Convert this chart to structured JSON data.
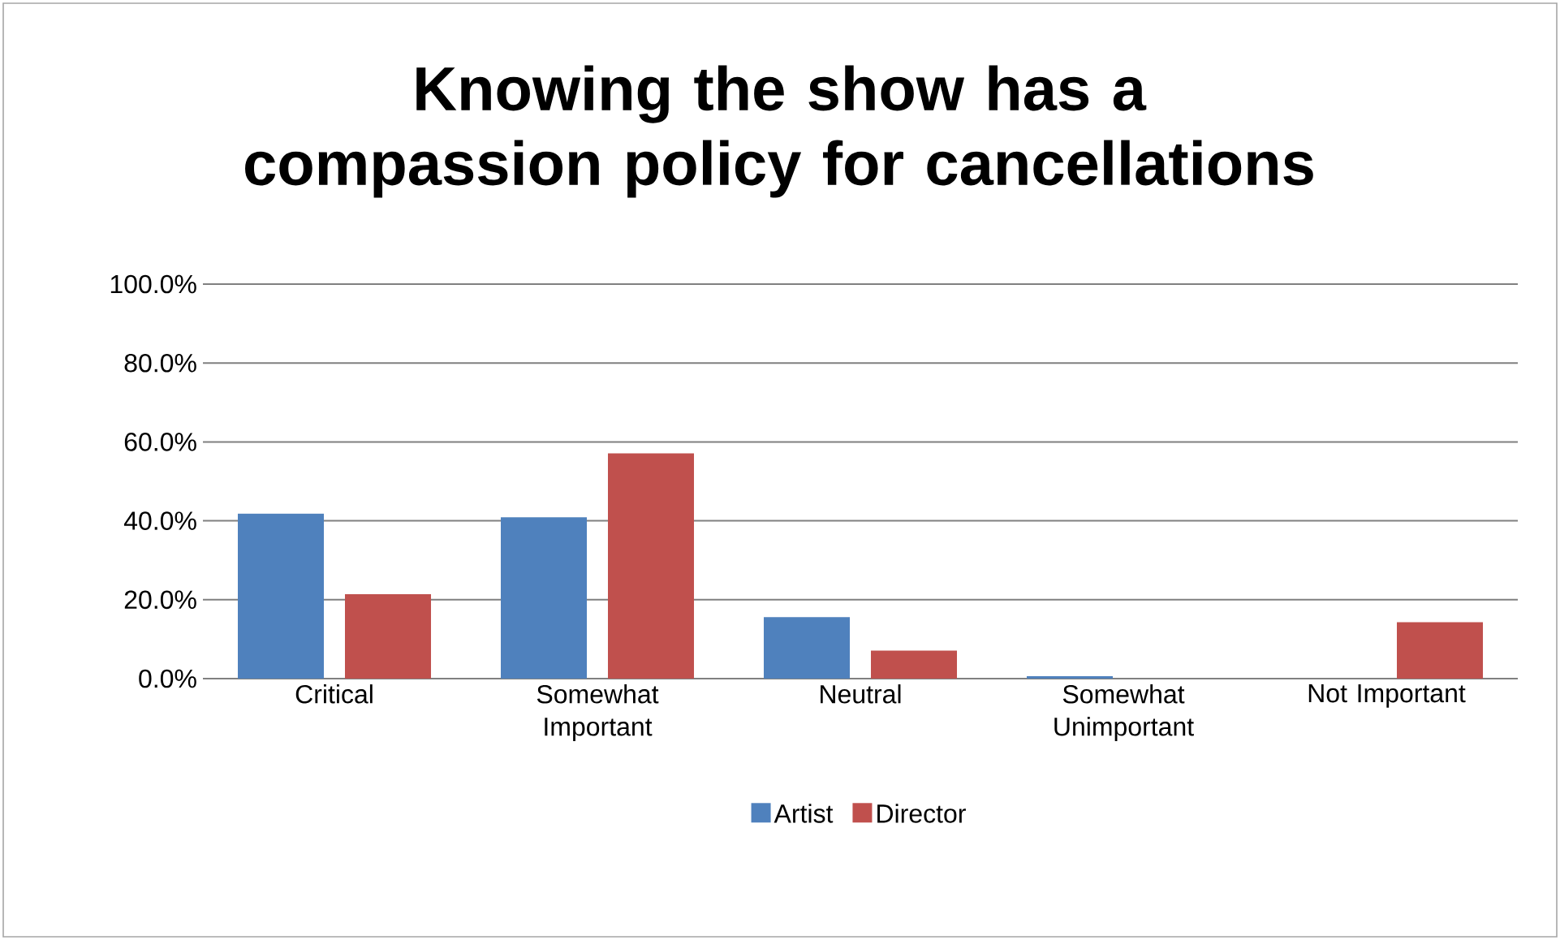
{
  "chart_data": {
    "type": "bar",
    "title": "Knowing the show has a compassion policy for cancellations",
    "categories": [
      "Critical",
      "Somewhat Important",
      "Neutral",
      "Somewhat Unimportant",
      "Not Important"
    ],
    "series": [
      {
        "name": "Artist",
        "color": "#4f81bd",
        "values": [
          41.8,
          40.9,
          15.6,
          0.6,
          0
        ]
      },
      {
        "name": "Director",
        "color": "#c0504d",
        "values": [
          21.4,
          57.1,
          7.1,
          0,
          14.3
        ]
      }
    ],
    "ylim": [
      0,
      100
    ],
    "yticks": [
      {
        "value": 0,
        "label": "0.0%"
      },
      {
        "value": 20,
        "label": "20.0%"
      },
      {
        "value": 40,
        "label": "40.0%"
      },
      {
        "value": 60,
        "label": "60.0%"
      },
      {
        "value": 80,
        "label": "80.0%"
      },
      {
        "value": 100,
        "label": "100.0%"
      }
    ],
    "grid": "y",
    "legend": "bottom"
  }
}
